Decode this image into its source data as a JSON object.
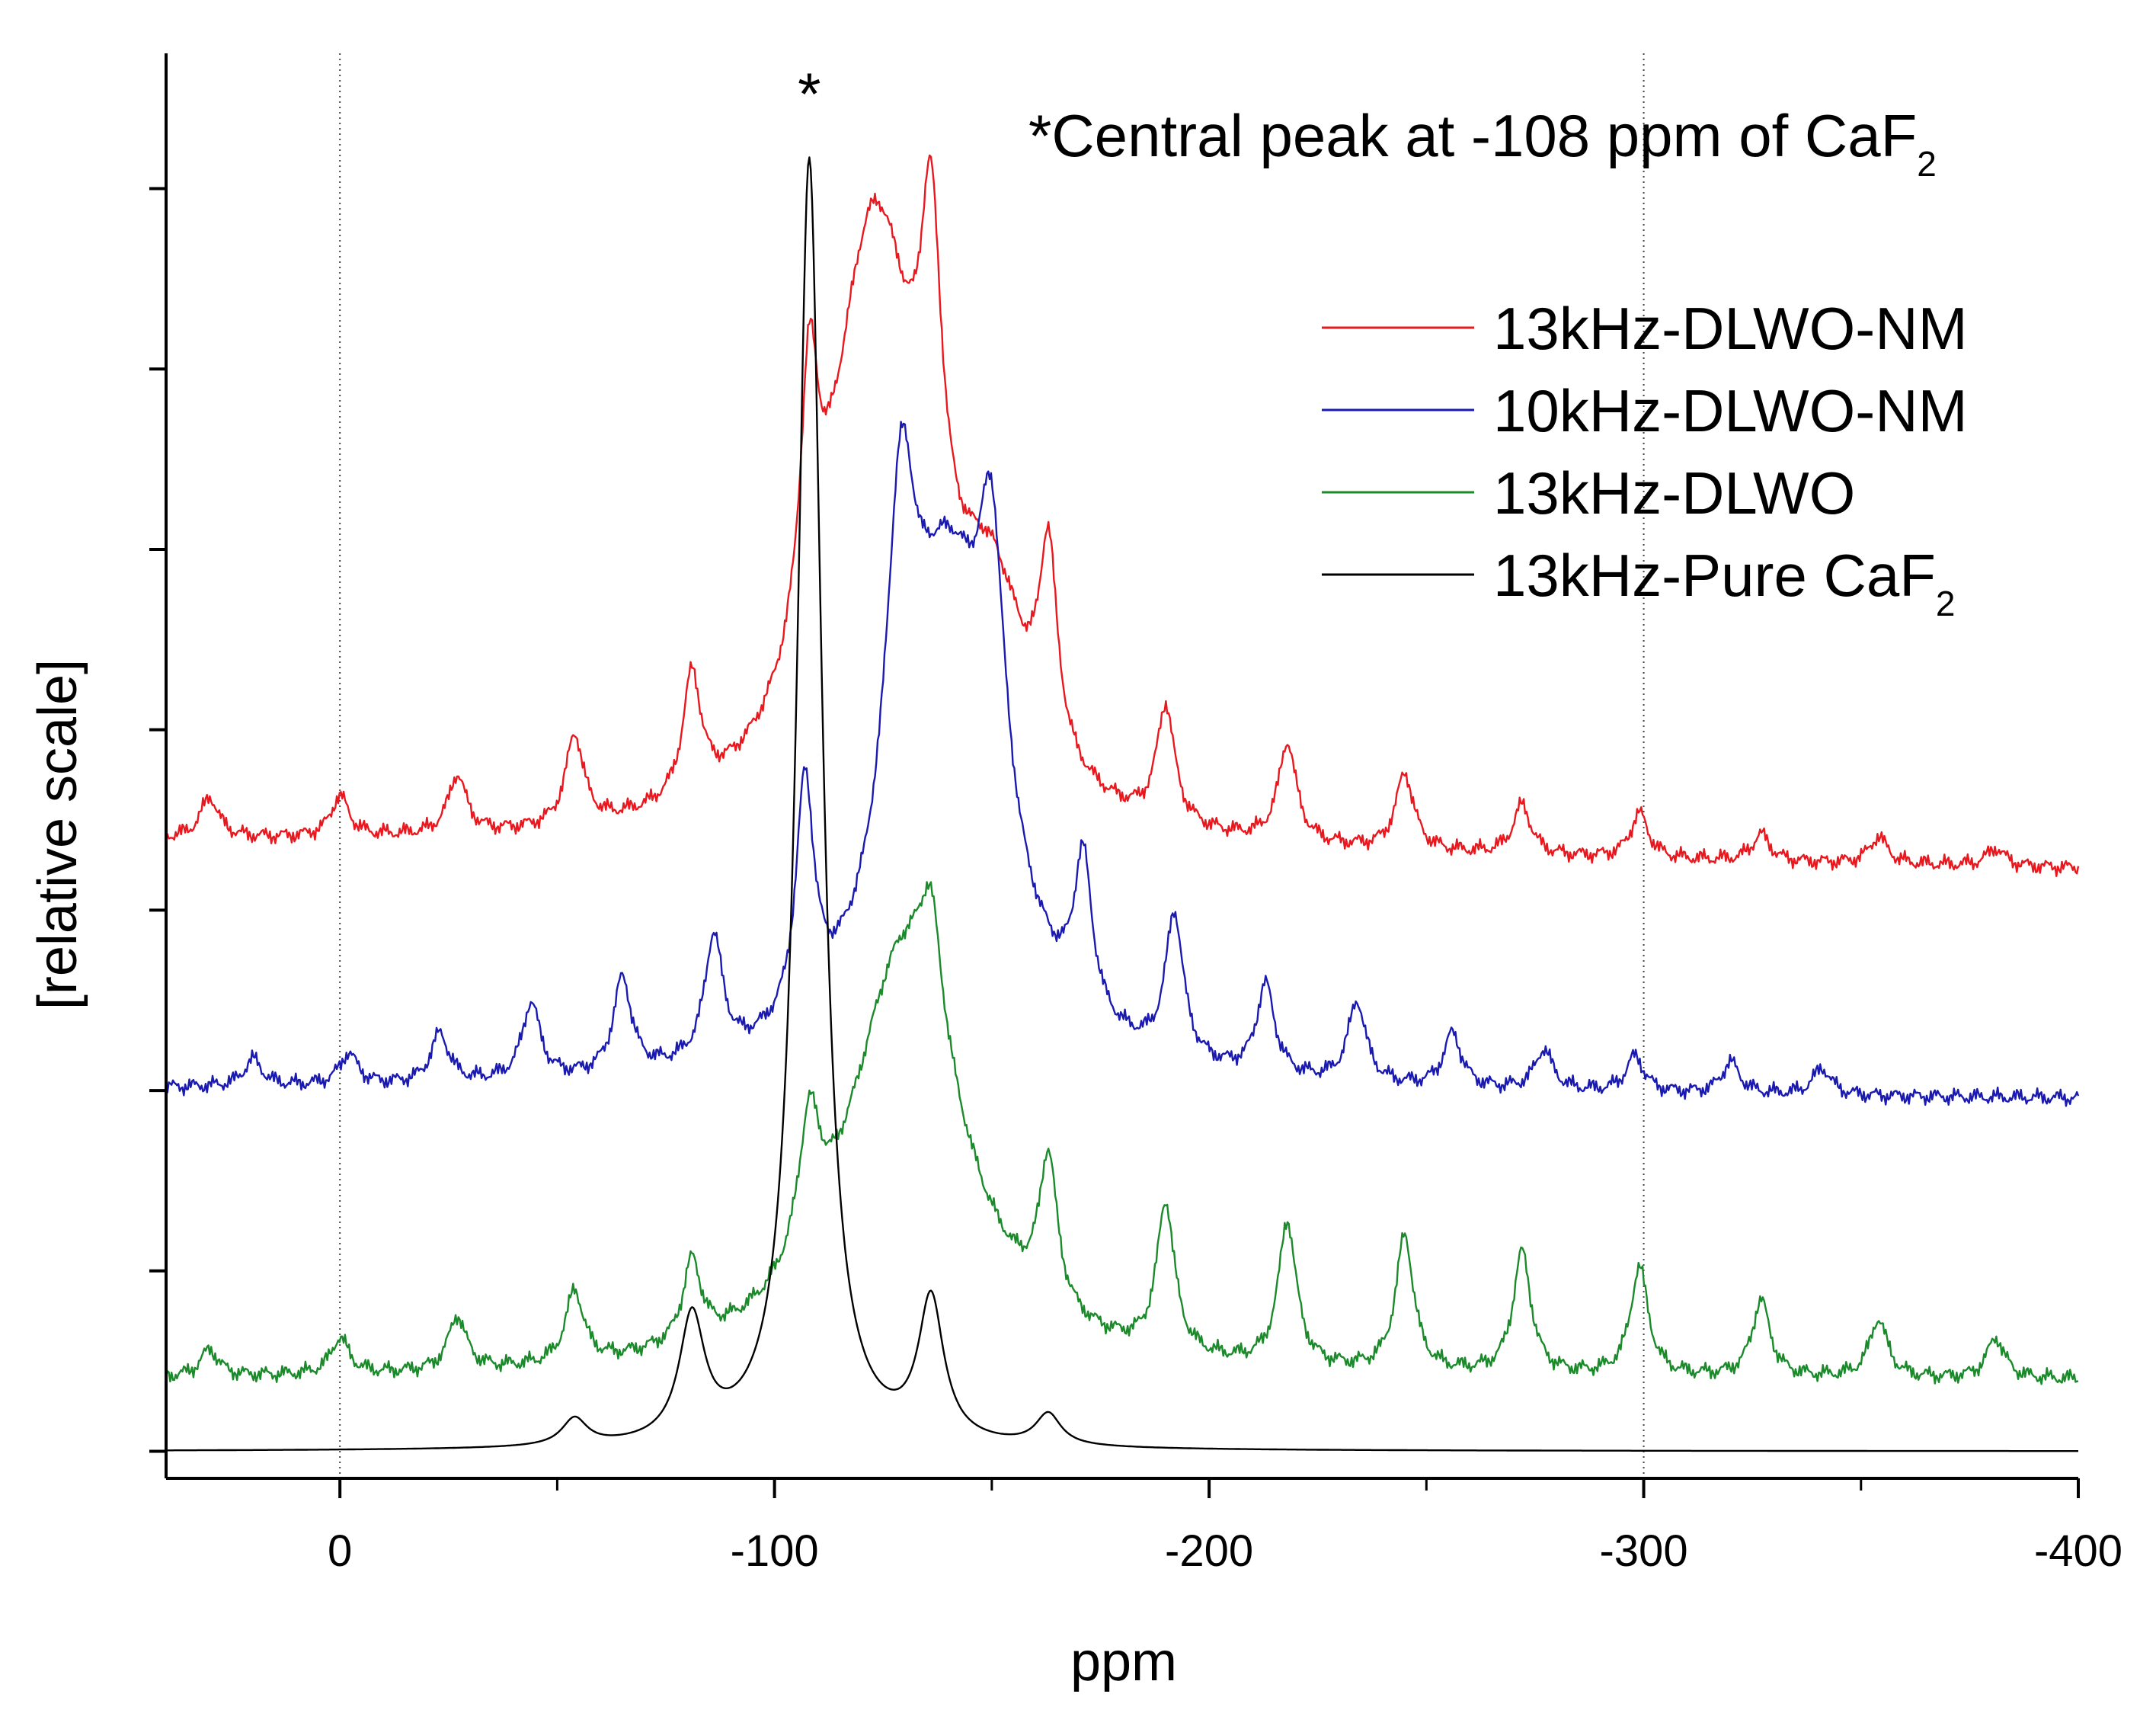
{
  "chart_data": {
    "type": "line",
    "title": "",
    "xlabel": "ppm",
    "ylabel": "[relative scale]",
    "xlim": [
      40,
      -400
    ],
    "ylim": [
      -0.3,
      15.5
    ],
    "x_ticks": [
      {
        "value": 0,
        "label": "0"
      },
      {
        "value": -100,
        "label": "-100"
      },
      {
        "value": -200,
        "label": "-200"
      },
      {
        "value": -300,
        "label": "-300"
      },
      {
        "value": -400,
        "label": "-400"
      }
    ],
    "minor_x_ticks": [
      -50,
      -150,
      -250,
      -350
    ],
    "y_ticks": [
      0,
      2,
      4,
      6,
      8,
      10,
      12,
      14
    ],
    "reference_lines": [
      0,
      -300
    ],
    "annotation": {
      "prefix": "*Central peak at -108 ppm of CaF",
      "subscript": "2"
    },
    "star_marker": {
      "text": "*",
      "x": -108
    },
    "legend_position": "top-right",
    "series": [
      {
        "name": "13kHz-DLWO-NM",
        "subscript": "",
        "color": "#e8181e",
        "baseline": 6.6,
        "tail_left": 0.15,
        "tail_right": -0.15,
        "peaks": [
          [
            30,
            0.45,
            2.5
          ],
          [
            0,
            0.45,
            2.5
          ],
          [
            -27,
            0.65,
            2.5
          ],
          [
            -54,
            1.0,
            2.5
          ],
          [
            -81,
            1.35,
            2.5
          ],
          [
            -108,
            2.8,
            2.5
          ],
          [
            -123,
            6.7,
            13
          ],
          [
            -136,
            3.6,
            3
          ],
          [
            -150,
            2.0,
            10
          ],
          [
            -163,
            2.2,
            2.5
          ],
          [
            -190,
            1.3,
            2.5
          ],
          [
            -218,
            1.1,
            2.5
          ],
          [
            -245,
            0.85,
            2.5
          ],
          [
            -272,
            0.55,
            2.5
          ],
          [
            -299,
            0.5,
            2.5
          ],
          [
            -327,
            0.3,
            2.5
          ],
          [
            -354,
            0.3,
            2.5
          ],
          [
            -381,
            0.2,
            2.5
          ]
        ]
      },
      {
        "name": "10kHz-DLWO-NM",
        "subscript": "",
        "color": "#1a1ab0",
        "baseline": 3.9,
        "tail_left": 0.1,
        "tail_right": 0.0,
        "peaks": [
          [
            20,
            0.3,
            2.5
          ],
          [
            -2,
            0.35,
            2.5
          ],
          [
            -23,
            0.55,
            2.5
          ],
          [
            -44,
            0.85,
            2.5
          ],
          [
            -65,
            1.05,
            2.5
          ],
          [
            -86,
            1.35,
            2.5
          ],
          [
            -107,
            2.6,
            2.5
          ],
          [
            -129,
            3.8,
            4
          ],
          [
            -140,
            5.5,
            14
          ],
          [
            -150,
            3.0,
            3.5
          ],
          [
            -171,
            1.7,
            2.5
          ],
          [
            -192,
            1.6,
            2.5
          ],
          [
            -213,
            1.0,
            2.5
          ],
          [
            -234,
            0.9,
            2.5
          ],
          [
            -256,
            0.6,
            2.5
          ],
          [
            -277,
            0.45,
            2.5
          ],
          [
            -298,
            0.4,
            2.5
          ],
          [
            -320,
            0.35,
            2.5
          ],
          [
            -341,
            0.3,
            2.5
          ]
        ]
      },
      {
        "name": "13kHz-DLWO",
        "subscript": "",
        "color": "#1a8a2a",
        "baseline": 0.78,
        "tail_left": 0.0,
        "tail_right": 0.0,
        "peaks": [
          [
            30,
            0.3,
            2.5
          ],
          [
            0,
            0.4,
            2.5
          ],
          [
            -27,
            0.6,
            2.5
          ],
          [
            -54,
            0.8,
            2.5
          ],
          [
            -81,
            0.9,
            2.5
          ],
          [
            -108,
            1.5,
            3
          ],
          [
            -130,
            4.7,
            16
          ],
          [
            -136,
            1.3,
            3
          ],
          [
            -163,
            1.65,
            2.5
          ],
          [
            -190,
            1.65,
            2.5
          ],
          [
            -218,
            1.6,
            2.5
          ],
          [
            -245,
            1.5,
            2.5
          ],
          [
            -272,
            1.35,
            2.5
          ],
          [
            -299,
            1.2,
            2.5
          ],
          [
            -327,
            0.85,
            2.5
          ],
          [
            -354,
            0.65,
            2.5
          ],
          [
            -381,
            0.45,
            2.5
          ]
        ]
      },
      {
        "name": "13kHz-Pure CaF",
        "subscript": "2",
        "color": "#000000",
        "baseline": 0.0,
        "tail_left": 0.0,
        "tail_right": 0.0,
        "peaks": [
          [
            -54,
            0.3,
            3.5
          ],
          [
            -81,
            1.35,
            3.5
          ],
          [
            -108,
            14.3,
            3.5
          ],
          [
            -136,
            1.55,
            3.5
          ],
          [
            -163,
            0.35,
            3.5
          ]
        ]
      }
    ]
  }
}
